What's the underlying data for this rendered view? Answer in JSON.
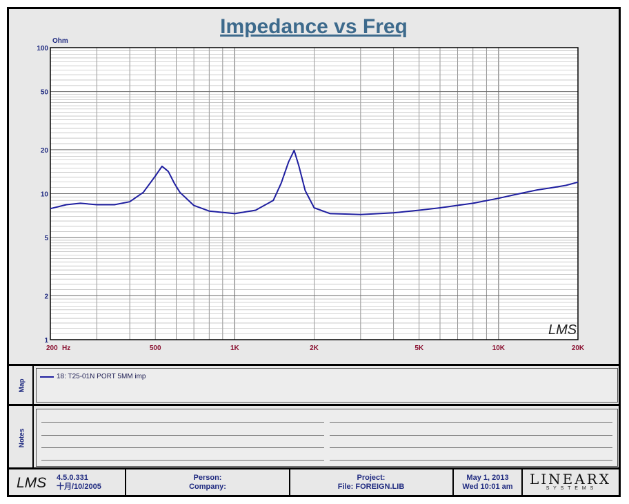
{
  "chart_data": {
    "type": "line",
    "title": "Impedance vs Freq",
    "ylabel": "Ohm",
    "x_unit": "Hz",
    "x_scale": "log",
    "y_scale": "log",
    "xlim": [
      200,
      20000
    ],
    "ylim": [
      1,
      100
    ],
    "grid": true,
    "x_ticks": [
      {
        "value": 200,
        "label": "200"
      },
      {
        "value": 500,
        "label": "500"
      },
      {
        "value": 1000,
        "label": "1K"
      },
      {
        "value": 2000,
        "label": "2K"
      },
      {
        "value": 5000,
        "label": "5K"
      },
      {
        "value": 10000,
        "label": "10K"
      },
      {
        "value": 20000,
        "label": "20K"
      }
    ],
    "y_ticks": [
      {
        "value": 1,
        "label": "1"
      },
      {
        "value": 2,
        "label": "2"
      },
      {
        "value": 5,
        "label": "5"
      },
      {
        "value": 10,
        "label": "10"
      },
      {
        "value": 20,
        "label": "20"
      },
      {
        "value": 50,
        "label": "50"
      },
      {
        "value": 100,
        "label": "100"
      }
    ],
    "series": [
      {
        "name": "18: T25-01N PORT 5MM imp",
        "color": "#1f1fa0",
        "x": [
          200,
          230,
          260,
          300,
          350,
          400,
          450,
          500,
          530,
          560,
          590,
          620,
          700,
          800,
          1000,
          1200,
          1400,
          1500,
          1600,
          1680,
          1750,
          1850,
          2000,
          2300,
          3000,
          4000,
          5000,
          6000,
          8000,
          10000,
          12000,
          14000,
          16000,
          18000,
          20000
        ],
        "values": [
          7.9,
          8.4,
          8.6,
          8.4,
          8.4,
          8.8,
          10.2,
          13.2,
          15.4,
          14.2,
          11.8,
          10.2,
          8.3,
          7.6,
          7.3,
          7.7,
          9.0,
          11.8,
          16.5,
          19.8,
          15.5,
          10.5,
          8.0,
          7.3,
          7.2,
          7.4,
          7.7,
          8.0,
          8.6,
          9.3,
          10.0,
          10.6,
          11.0,
          11.4,
          12.0
        ]
      }
    ]
  },
  "watermark": "LMS",
  "side_labels": {
    "map": "Map",
    "notes": "Notes"
  },
  "footer": {
    "logo": "LMS",
    "version": "4.5.0.331",
    "build_date": "十月/10/2005",
    "person_label": "Person:",
    "company_label": "Company:",
    "project_label": "Project:",
    "file_label": "File: FOREIGN.LIB",
    "date": "May  1, 2013",
    "time": "Wed 10:01 am",
    "brand_main": "LINEARX",
    "brand_sub": "S Y S T E M S"
  }
}
